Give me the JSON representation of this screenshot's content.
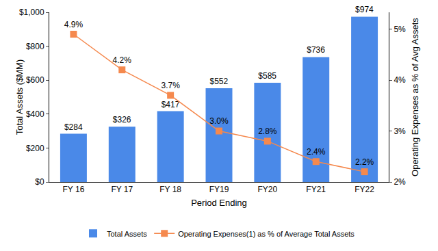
{
  "chart_data": {
    "type": "bar",
    "x_label": "Period Ending",
    "y_label": "Total Assets ($MM)",
    "y2_label": "Operating Expenses as % of Avg Assets",
    "categories": [
      "FY 16",
      "FY 17",
      "FY 18",
      "FY19",
      "FY20",
      "FY21",
      "FY22"
    ],
    "series": [
      {
        "name": "Total Assets",
        "type": "bar",
        "color": "#4a89e8",
        "values": [
          284,
          326,
          417,
          552,
          585,
          736,
          974
        ],
        "value_labels": [
          "$284",
          "$326",
          "$417",
          "$552",
          "$585",
          "$736",
          "$974"
        ]
      },
      {
        "name": "Operating Expenses(1) as % of Average Total Assets",
        "type": "line",
        "axis": "y2",
        "color": "#f5894e",
        "marker": "square",
        "line_style": "solid",
        "values": [
          4.9,
          4.2,
          3.7,
          3.0,
          2.8,
          2.4,
          2.2
        ],
        "value_labels": [
          "4.9%",
          "4.2%",
          "3.7%",
          "3.0%",
          "2.8%",
          "2.4%",
          "2.2%"
        ]
      }
    ],
    "ylim": [
      0,
      1000
    ],
    "yticks": [
      {
        "value": 0,
        "label": "$0"
      },
      {
        "value": 200,
        "label": "$200"
      },
      {
        "value": 400,
        "label": "$400"
      },
      {
        "value": 600,
        "label": "$600"
      },
      {
        "value": 800,
        "label": "$800"
      },
      {
        "value": 1000,
        "label": "$1,000"
      }
    ],
    "y2lim": [
      2,
      5.33
    ],
    "y2ticks": [
      {
        "value": 2,
        "label": "2%"
      },
      {
        "value": 3,
        "label": "3%"
      },
      {
        "value": 4,
        "label": "4%"
      },
      {
        "value": 5,
        "label": "5%"
      }
    ],
    "grid": false,
    "legend": "bottom",
    "data_labels": true
  }
}
